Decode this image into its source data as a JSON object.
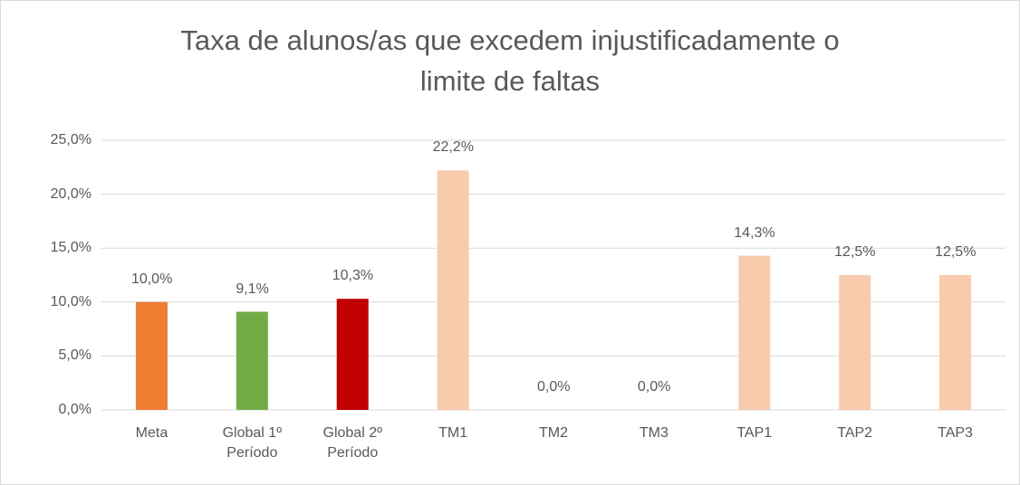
{
  "chart_data": {
    "type": "bar",
    "title": [
      "Taxa de alunos/as que excedem injustificadamente o",
      "limite de faltas"
    ],
    "categories": [
      "Meta",
      "Global 1º Período",
      "Global 2º Período",
      "TM1",
      "TM2",
      "TM3",
      "TAP1",
      "TAP2",
      "TAP3"
    ],
    "values": [
      10,
      9.1,
      10.3,
      22.2,
      0,
      0,
      14.3,
      12.5,
      12.5
    ],
    "value_labels": [
      "10,0%",
      "9,1%",
      "10,3%",
      "22,2%",
      "0,0%",
      "0,0%",
      "14,3%",
      "12,5%",
      "12,5%"
    ],
    "colors": [
      "#ed7d31",
      "#70ad47",
      "#c00000",
      "#f8cbad",
      "#f8cbad",
      "#f8cbad",
      "#f8cbad",
      "#f8cbad",
      "#f8cbad"
    ],
    "ylim": [
      0,
      25
    ],
    "yticks": [
      {
        "value": 0,
        "label": "0,0%"
      },
      {
        "value": 5,
        "label": "5,0%"
      },
      {
        "value": 10,
        "label": "10,0%"
      },
      {
        "value": 15,
        "label": "15,0%"
      },
      {
        "value": 20,
        "label": "20,0%"
      },
      {
        "value": 25,
        "label": "25,0%"
      }
    ],
    "grid": true
  }
}
